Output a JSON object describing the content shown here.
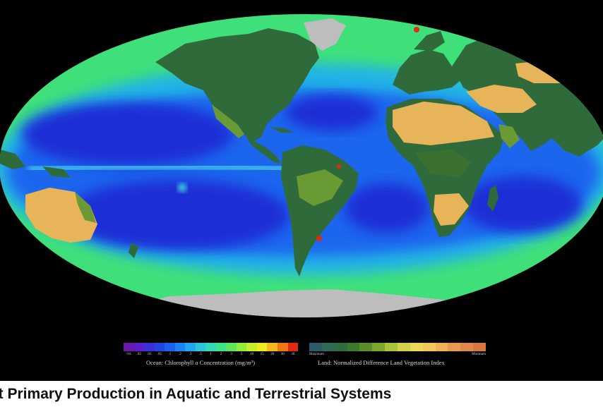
{
  "caption": "et Primary Production in Aquatic and Terrestrial Systems",
  "ocean_legend": {
    "caption_prefix": "Ocean:  Chlorophyll ",
    "caption_italic": "a",
    "caption_suffix": " Concentration (mg/m³)",
    "ticks": [
      ">01",
      ".02",
      ".03",
      ".05",
      ".1",
      ".2",
      ".3",
      ".5",
      "1",
      "2",
      "3",
      "5",
      "10",
      "15",
      "20",
      "30",
      "30"
    ],
    "colors": [
      "#6a1aa8",
      "#5a1fc8",
      "#3b2fd8",
      "#2246e6",
      "#1a62ee",
      "#1b84f2",
      "#22a6ee",
      "#2cc6dc",
      "#33d8b8",
      "#3fe28a",
      "#5ce85a",
      "#90ee3a",
      "#c6ef2a",
      "#f2ea20",
      "#f6b81c",
      "#f07418",
      "#e02a14"
    ]
  },
  "land_legend": {
    "caption": "Land:  Normalized Difference Land Vegetation Index",
    "min_label": "Maximum",
    "max_label": "Minimum",
    "colors": [
      "#2d5a6a",
      "#2f6a56",
      "#2f6e3c",
      "#3c7a2e",
      "#5a8e2a",
      "#7aa630",
      "#a8c23a",
      "#d2d24a",
      "#ecd856",
      "#f2c858",
      "#f0b056",
      "#e89a50",
      "#e0884a",
      "#d8783e"
    ]
  },
  "map": {
    "projection": "mollweide",
    "colors": {
      "background": "#000000",
      "deep_ocean": "#1a2fd6",
      "ocean": "#1e66ee",
      "shelf": "#22b4e6",
      "productive": "#3fe07a",
      "forest": "#2f6a3a",
      "vegetation": "#6a9a34",
      "desert": "#e8b45a",
      "ice": "#bdbdbd"
    }
  }
}
